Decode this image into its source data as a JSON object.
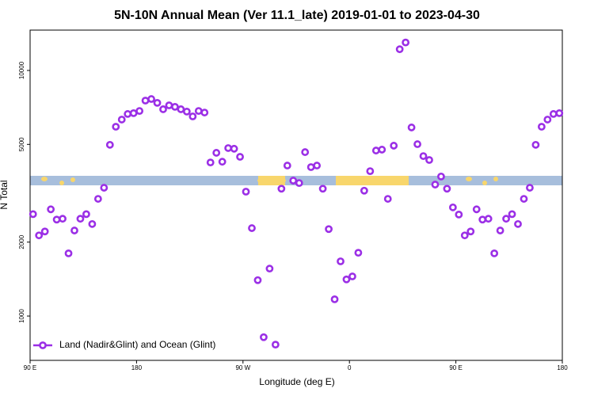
{
  "chart_data": {
    "type": "scatter",
    "title": "5N-10N Annual Mean (Ver 11.1_late)   2019-01-01 to 2023-04-30",
    "x_label": "Longitude (deg E)",
    "y_label": "N Total",
    "xlim": [
      90,
      540
    ],
    "ylim": [
      660,
      14600
    ],
    "log_y": true,
    "legend": "lower left",
    "xticks": [
      {
        "value": 90,
        "label": "90 E"
      },
      180,
      {
        "value": 270,
        "label": "90 W"
      },
      {
        "value": 360,
        "label": "0"
      },
      {
        "value": 450,
        "label": "90 E"
      },
      {
        "value": 540,
        "label": "180"
      }
    ],
    "yticks": [
      1000,
      2000,
      5000,
      10000
    ],
    "series": [
      {
        "name": "Land (Nadir&Glint) and Ocean (Glint)",
        "color": "#9b2fe6",
        "x": [
          92.5,
          97.5,
          102.5,
          107.5,
          112.5,
          117.5,
          122.5,
          127.5,
          132.5,
          137.5,
          142.5,
          147.5,
          152.5,
          157.5,
          162.5,
          167.5,
          172.5,
          177.5,
          182.5,
          187.5,
          192.5,
          197.5,
          202.5,
          207.5,
          212.5,
          217.5,
          222.5,
          227.5,
          232.5,
          237.5,
          242.5,
          247.5,
          252.5,
          257.5,
          262.5,
          267.5,
          272.5,
          277.5,
          282.5,
          287.5,
          292.5,
          297.5,
          302.5,
          307.5,
          312.5,
          317.5,
          322.5,
          327.5,
          332.5,
          337.5,
          342.5,
          347.5,
          352.5,
          357.5,
          362.5,
          367.5,
          372.5,
          377.5,
          382.5,
          387.5,
          392.5,
          397.5,
          402.5,
          407.5,
          412.5,
          417.5,
          422.5,
          427.5,
          432.5,
          437.5,
          442.5,
          447.5,
          452.5,
          457.5,
          462.5,
          467.5,
          472.5,
          477.5,
          482.5,
          487.5,
          492.5,
          497.5,
          502.5,
          507.5,
          512.5,
          517.5,
          522.5,
          527.5,
          532.5,
          537.5
        ],
        "values": [
          2600,
          2130,
          2210,
          2720,
          2470,
          2490,
          1800,
          2230,
          2490,
          2600,
          2370,
          3000,
          3330,
          4980,
          5900,
          6310,
          6650,
          6700,
          6840,
          7540,
          7650,
          7380,
          6950,
          7210,
          7110,
          6950,
          6800,
          6500,
          6840,
          6740,
          4220,
          4620,
          4250,
          4830,
          4800,
          4450,
          3210,
          2280,
          1400,
          820,
          1560,
          765,
          3300,
          4100,
          3560,
          3480,
          4650,
          4040,
          4100,
          3300,
          2260,
          1170,
          1670,
          1410,
          1450,
          1810,
          3240,
          3890,
          4720,
          4760,
          3000,
          4940,
          12200,
          13000,
          5860,
          5010,
          4480,
          4320,
          3430,
          3700,
          3300,
          2770,
          2590,
          2130,
          2210,
          2720,
          2470,
          2490,
          1800,
          2230,
          2490,
          2600,
          2370,
          3000,
          3330,
          4980,
          5900,
          6310,
          6650,
          6700
        ]
      }
    ]
  }
}
